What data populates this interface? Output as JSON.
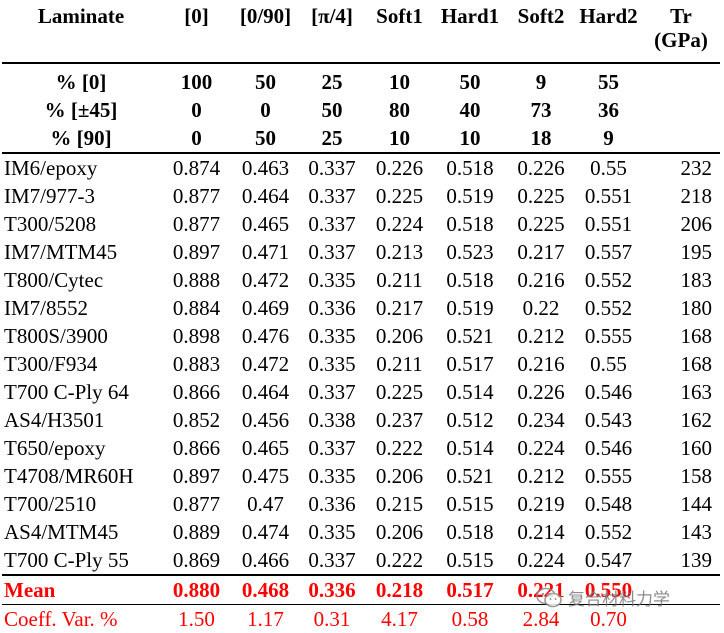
{
  "columns": [
    "Laminate",
    "[0]",
    "[0/90]",
    "[π/4]",
    "Soft1",
    "Hard1",
    "Soft2",
    "Hard2",
    "Tr (GPa)"
  ],
  "layup_rows": [
    {
      "label": "% [0]",
      "values": [
        "100",
        "50",
        "25",
        "10",
        "50",
        "9",
        "55",
        ""
      ]
    },
    {
      "label": "% [±45]",
      "values": [
        "0",
        "0",
        "50",
        "80",
        "40",
        "73",
        "36",
        ""
      ]
    },
    {
      "label": "% [90]",
      "values": [
        "0",
        "50",
        "25",
        "10",
        "10",
        "18",
        "9",
        ""
      ]
    }
  ],
  "materials": [
    {
      "name": "IM6/epoxy",
      "values": [
        "0.874",
        "0.463",
        "0.337",
        "0.226",
        "0.518",
        "0.226",
        "0.55",
        "232"
      ]
    },
    {
      "name": "IM7/977-3",
      "values": [
        "0.877",
        "0.464",
        "0.337",
        "0.225",
        "0.519",
        "0.225",
        "0.551",
        "218"
      ]
    },
    {
      "name": "T300/5208",
      "values": [
        "0.877",
        "0.465",
        "0.337",
        "0.224",
        "0.518",
        "0.225",
        "0.551",
        "206"
      ]
    },
    {
      "name": "IM7/MTM45",
      "values": [
        "0.897",
        "0.471",
        "0.337",
        "0.213",
        "0.523",
        "0.217",
        "0.557",
        "195"
      ]
    },
    {
      "name": "T800/Cytec",
      "values": [
        "0.888",
        "0.472",
        "0.335",
        "0.211",
        "0.518",
        "0.216",
        "0.552",
        "183"
      ]
    },
    {
      "name": "IM7/8552",
      "values": [
        "0.884",
        "0.469",
        "0.336",
        "0.217",
        "0.519",
        "0.22",
        "0.552",
        "180"
      ]
    },
    {
      "name": "T800S/3900",
      "values": [
        "0.898",
        "0.476",
        "0.335",
        "0.206",
        "0.521",
        "0.212",
        "0.555",
        "168"
      ]
    },
    {
      "name": "T300/F934",
      "values": [
        "0.883",
        "0.472",
        "0.335",
        "0.211",
        "0.517",
        "0.216",
        "0.55",
        "168"
      ]
    },
    {
      "name": "T700 C-Ply 64",
      "values": [
        "0.866",
        "0.464",
        "0.337",
        "0.225",
        "0.514",
        "0.226",
        "0.546",
        "163"
      ]
    },
    {
      "name": "AS4/H3501",
      "values": [
        "0.852",
        "0.456",
        "0.338",
        "0.237",
        "0.512",
        "0.234",
        "0.543",
        "162"
      ]
    },
    {
      "name": "T650/epoxy",
      "values": [
        "0.866",
        "0.465",
        "0.337",
        "0.222",
        "0.514",
        "0.224",
        "0.546",
        "160"
      ]
    },
    {
      "name": "T4708/MR60H",
      "values": [
        "0.897",
        "0.475",
        "0.335",
        "0.206",
        "0.521",
        "0.212",
        "0.555",
        "158"
      ]
    },
    {
      "name": "T700/2510",
      "values": [
        "0.877",
        "0.47",
        "0.336",
        "0.215",
        "0.515",
        "0.219",
        "0.548",
        "144"
      ]
    },
    {
      "name": "AS4/MTM45",
      "values": [
        "0.889",
        "0.474",
        "0.335",
        "0.206",
        "0.518",
        "0.214",
        "0.552",
        "143"
      ]
    },
    {
      "name": "T700 C-Ply 55",
      "values": [
        "0.869",
        "0.466",
        "0.337",
        "0.222",
        "0.515",
        "0.224",
        "0.547",
        "139"
      ]
    }
  ],
  "mean": {
    "label": "Mean",
    "values": [
      "0.880",
      "0.468",
      "0.336",
      "0.218",
      "0.517",
      "0.221",
      "0.550",
      ""
    ]
  },
  "cv": {
    "label": "Coeff. Var. %",
    "values": [
      "1.50",
      "1.17",
      "0.31",
      "4.17",
      "0.58",
      "2.84",
      "0.70",
      ""
    ]
  },
  "watermark": {
    "text": "复合材料力学",
    "icon": "wechat-icon"
  },
  "colors": {
    "highlight": "#ff0000",
    "text": "#000000"
  }
}
